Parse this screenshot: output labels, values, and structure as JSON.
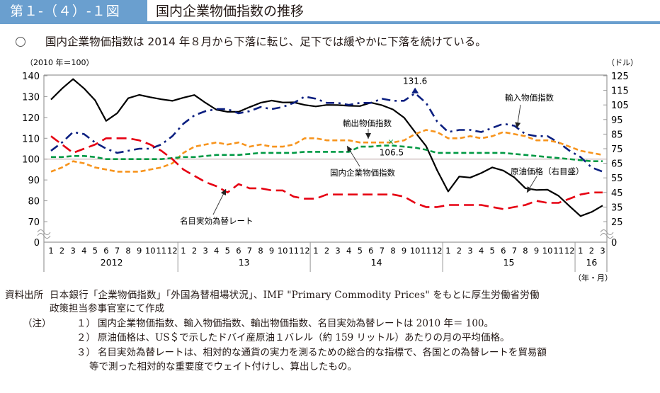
{
  "header": {
    "figure_label": "第１-（４）-１図",
    "title": "国内企業物価指数の推移"
  },
  "lead_text": "国内企業物価指数は 2014 年８月から下落に転じ、足下では緩やかに下落を続けている。",
  "chart_data": {
    "type": "line",
    "title": "国内企業物価指数の推移",
    "ylabel_left": "（2010 年＝100）",
    "ylabel_right": "（ドル）",
    "xlabel": "（年・月）",
    "ylim_left": [
      70,
      140
    ],
    "ylim_right": [
      25,
      125
    ],
    "axis_break": true,
    "left_ticks": [
      "140",
      "130",
      "120",
      "110",
      "100",
      "90",
      "80",
      "70",
      "0"
    ],
    "right_ticks": [
      "125",
      "115",
      "105",
      "95",
      "85",
      "75",
      "65",
      "55",
      "45",
      "35",
      "25",
      "0"
    ],
    "reference_line": 100,
    "month_ticks": [
      "1",
      "2",
      "3",
      "4",
      "5",
      "6",
      "7",
      "8",
      "9",
      "10",
      "11",
      "12"
    ],
    "years": [
      {
        "label": "2012",
        "months": 12
      },
      {
        "label": "13",
        "months": 12
      },
      {
        "label": "14",
        "months": 12
      },
      {
        "label": "15",
        "months": 12
      },
      {
        "label": "16",
        "months": 3
      }
    ],
    "series": [
      {
        "name": "原油価格（右目盛）",
        "axis": "right",
        "color": "#000000",
        "style": "solid",
        "values": [
          108.7,
          116.2,
          122.7,
          116.3,
          108.2,
          94.1,
          99.3,
          109.6,
          111.9,
          110.3,
          108.9,
          107.8,
          110.0,
          111.8,
          106.5,
          101.7,
          100.3,
          100.3,
          103.5,
          106.5,
          108.0,
          106.7,
          106.8,
          105.0,
          104.0,
          105.0,
          104.9,
          104.4,
          104.2,
          106.6,
          104.8,
          101.9,
          96.3,
          86.4,
          76.8,
          60.2,
          45.7,
          55.9,
          55.2,
          58.3,
          62.2,
          60.0,
          55.3,
          47.9,
          46.7,
          46.9,
          42.7,
          35.6,
          28.8,
          31.6,
          36.0
        ]
      },
      {
        "name": "輸入物価指数",
        "axis": "left",
        "color": "#0b1f80",
        "style": "dashdot",
        "values": [
          104,
          108,
          113,
          112,
          108,
          105,
          103,
          104,
          105,
          105,
          107,
          111,
          117,
          121,
          123,
          124,
          124,
          122,
          123,
          125,
          124,
          125,
          127,
          130,
          129,
          127,
          127,
          126,
          127,
          127,
          129,
          128,
          128,
          131.6,
          127,
          118,
          113,
          114,
          114,
          113,
          115,
          117,
          116,
          112,
          111,
          111,
          108,
          104,
          101,
          96,
          94
        ]
      },
      {
        "name": "輸出物価指数",
        "axis": "left",
        "color": "#f7941d",
        "style": "dashed",
        "values": [
          94,
          96,
          99,
          98,
          96,
          95,
          94,
          94,
          94,
          95,
          96,
          98,
          103,
          106,
          107,
          108,
          107,
          108,
          106,
          107,
          106,
          106,
          107,
          110,
          110,
          109,
          109,
          109,
          108,
          108,
          108,
          108,
          109,
          112,
          114,
          113,
          110,
          110,
          111,
          110,
          111,
          113,
          112,
          111,
          109,
          109,
          108,
          106,
          104,
          103,
          102
        ]
      },
      {
        "name": "国内企業物価指数",
        "axis": "left",
        "color": "#009944",
        "style": "dashed",
        "values": [
          101,
          101,
          101.5,
          101.5,
          101,
          100,
          100,
          100,
          100,
          100,
          100,
          100.5,
          101,
          101,
          101.5,
          102,
          102,
          102,
          102.5,
          103,
          103,
          103,
          103,
          103.5,
          103.5,
          103.5,
          103.5,
          103.5,
          106,
          106,
          106.5,
          106.5,
          106,
          105.5,
          104.5,
          103,
          103,
          103,
          103,
          103,
          103,
          103,
          102.5,
          102,
          101.5,
          101,
          100.5,
          100,
          99.5,
          99,
          99
        ]
      },
      {
        "name": "名目実効為替レート",
        "axis": "left",
        "color": "#e60012",
        "style": "longdash",
        "values": [
          111,
          107,
          103,
          105,
          107,
          110,
          110,
          110,
          109,
          107,
          104,
          100,
          95,
          92,
          89,
          87,
          84,
          88,
          86,
          86,
          85,
          85,
          82,
          81,
          81,
          83,
          83,
          83,
          83,
          83,
          83,
          83,
          82,
          79,
          77,
          77,
          78,
          78,
          78,
          78,
          77,
          76,
          77,
          78,
          80,
          79,
          79,
          81,
          83,
          84,
          84
        ]
      }
    ],
    "annotations": [
      {
        "text": "131.6",
        "series": "輸入物価指数",
        "index": 33
      },
      {
        "text": "106.5",
        "series": "国内企業物価指数",
        "index": 31
      },
      {
        "text": "輸入物価指数",
        "series": "輸入物価指数"
      },
      {
        "text": "輸出物価指数",
        "series": "輸出物価指数"
      },
      {
        "text": "国内企業物価指数",
        "series": "国内企業物価指数"
      },
      {
        "text": "原油価格（右目盛）",
        "series": "原油価格（右目盛）"
      },
      {
        "text": "名目実効為替レート",
        "series": "名目実効為替レート"
      }
    ]
  },
  "notes": {
    "source_label": "資料出所",
    "source_line1": "日本銀行「企業物価指数」「外国為替相場状況」、IMF \"Primary  Commodity  Prices\" をもとに厚生労働省労働",
    "source_line2": "政策担当参事官室にて作成",
    "note_label": "（注）",
    "note1_num": "１）",
    "note1": "国内企業物価指数、輸入物価指数、輸出物価指数、名目実効為替レートは 2010 年＝ 100。",
    "note2_num": "２）",
    "note2": "原油価格は、US＄で示したドバイ産原油１バレル（約 159 リットル）あたりの月の平均価格。",
    "note3_num": "３）",
    "note3_line1": "名目実効為替レートは、相対的な通貨の実力を測るための総合的な指標で、各国との為替レートを貿易額",
    "note3_line2": "等で測った相対的な重要度でウェイト付けし、算出したもの。"
  }
}
